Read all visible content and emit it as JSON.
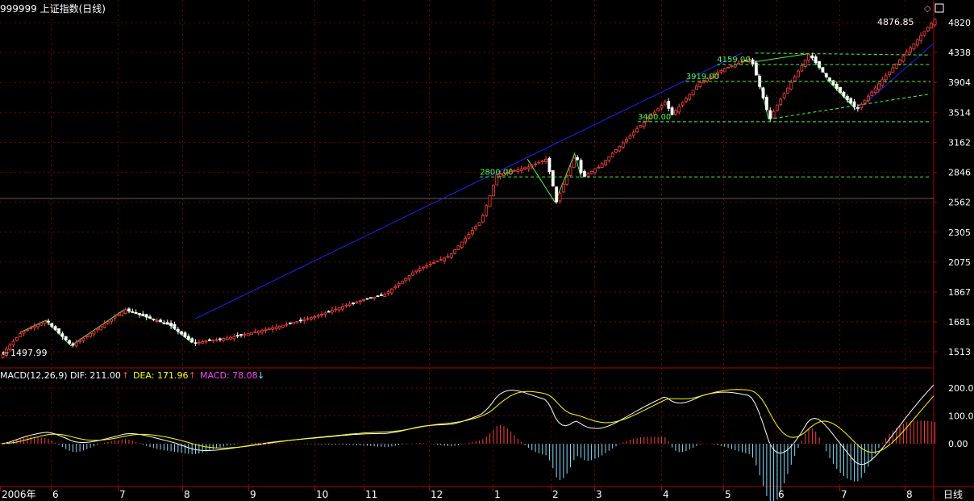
{
  "title": "999999 上证指数(日线)",
  "last_price_label": "4876.85",
  "low_label": "1497.99",
  "period_label": "日线",
  "colors": {
    "background": "#000000",
    "axis": "#b00000",
    "grid": "#7a0000",
    "up": "#ff4040",
    "down": "#ffffff",
    "trend_blue": "#2020ff",
    "support_green": "#40ff40",
    "price_label": "#ffffff",
    "macd_dif": "#ffffff",
    "macd_dea": "#ffff00",
    "macd_bar_up": "#ff4040",
    "macd_bar_down": "#80e0ff",
    "macd_label": "#ff40ff"
  },
  "macd": {
    "label": "MACD(12,26,9)",
    "dif_label": "DIF: 211.00",
    "dea_label": "DEA: 171.96",
    "macd_label": "MACD: 78.08",
    "dif_arrow": "↑",
    "dea_arrow": "↑",
    "macd_arrow": "↓"
  },
  "chart_data": [
    {
      "type": "candlestick",
      "title": "999999 上证指数(日线)",
      "scale": "log",
      "y_ticks": [
        4820,
        4338,
        3904,
        3514,
        3162,
        2846,
        2562,
        2305,
        2075,
        1867,
        1681,
        1513
      ],
      "x_tick_labels": [
        "2006年",
        "6",
        "7",
        "8",
        "9",
        "10",
        "11",
        "12",
        "1",
        "2",
        "3",
        "4",
        "5",
        "6",
        "7",
        "8"
      ],
      "annotations": [
        {
          "text": "4159.00",
          "value": 4159
        },
        {
          "text": "3919.00",
          "value": 3919
        },
        {
          "text": "3400.00",
          "value": 3400
        },
        {
          "text": "2800.00",
          "value": 2800
        }
      ],
      "anchor_points": [
        {
          "month": 0.0,
          "close": 1497.99
        },
        {
          "month": 0.4,
          "close": 1620
        },
        {
          "month": 0.9,
          "close": 1690
        },
        {
          "month": 1.3,
          "close": 1545
        },
        {
          "month": 2.1,
          "close": 1755
        },
        {
          "month": 2.8,
          "close": 1660
        },
        {
          "month": 3.15,
          "close": 1560
        },
        {
          "month": 3.7,
          "close": 1590
        },
        {
          "month": 4.5,
          "close": 1660
        },
        {
          "month": 5.6,
          "close": 1780
        },
        {
          "month": 6.3,
          "close": 1850
        },
        {
          "month": 6.8,
          "close": 2020
        },
        {
          "month": 7.3,
          "close": 2120
        },
        {
          "month": 7.8,
          "close": 2400
        },
        {
          "month": 8.05,
          "close": 2820
        },
        {
          "month": 8.6,
          "close": 2900
        },
        {
          "month": 8.9,
          "close": 2980
        },
        {
          "month": 9.1,
          "close": 2560
        },
        {
          "month": 9.55,
          "close": 3040
        },
        {
          "month": 9.7,
          "close": 2790
        },
        {
          "month": 10.05,
          "close": 2900
        },
        {
          "month": 10.6,
          "close": 3300
        },
        {
          "month": 11.05,
          "close": 3650
        },
        {
          "month": 11.15,
          "close": 3480
        },
        {
          "month": 11.6,
          "close": 3900
        },
        {
          "month": 12.0,
          "close": 4100
        },
        {
          "month": 12.5,
          "close": 4250
        },
        {
          "month": 12.85,
          "close": 3430
        },
        {
          "month": 13.5,
          "close": 4320
        },
        {
          "month": 13.8,
          "close": 3950
        },
        {
          "month": 14.25,
          "close": 3550
        },
        {
          "month": 14.6,
          "close": 3900
        },
        {
          "month": 15.0,
          "close": 4330
        },
        {
          "month": 15.45,
          "close": 4876.85
        }
      ],
      "last_close": 4876.85,
      "low": 1497.99
    },
    {
      "type": "line_bar",
      "title": "MACD(12,26,9)",
      "y_ticks": [
        200.0,
        100.0,
        0.0
      ],
      "series": [
        {
          "name": "DIF",
          "last": 211.0
        },
        {
          "name": "DEA",
          "last": 171.96
        },
        {
          "name": "MACD",
          "last": 78.08
        }
      ]
    }
  ]
}
